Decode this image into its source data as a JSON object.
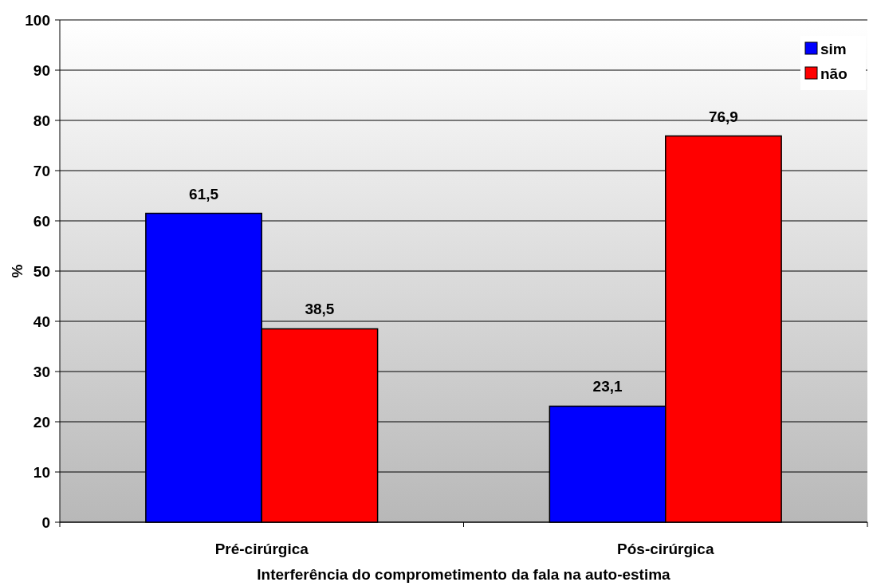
{
  "chart_data": {
    "type": "bar",
    "xlabel": "Interferência do comprometimento da fala na auto-estima",
    "ylabel": "%",
    "categories": [
      "Pré-cirúrgica",
      "Pós-cirúrgica"
    ],
    "series": [
      {
        "name": "sim",
        "color": "#0000ff",
        "values": [
          61.5,
          23.1
        ],
        "value_labels": [
          "61,5",
          "23,1"
        ]
      },
      {
        "name": "não",
        "color": "#ff0000",
        "values": [
          38.5,
          76.9
        ],
        "value_labels": [
          "38,5",
          "76,9"
        ]
      }
    ],
    "ylim": [
      0,
      100
    ],
    "yticks": [
      0,
      10,
      20,
      30,
      40,
      50,
      60,
      70,
      80,
      90,
      100
    ],
    "grid": "y",
    "legend": "top right"
  }
}
